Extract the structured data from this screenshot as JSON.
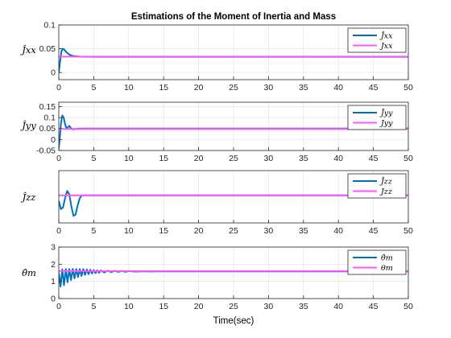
{
  "figure": {
    "title": "Estimations of the Moment of Inertia and Mass",
    "xlabel": "Time(sec)"
  },
  "colors": {
    "estimate": "#0072BD",
    "reference": "#FF55FF",
    "grid": "#DFDFDF",
    "axes": "#262626"
  },
  "chart_data": [
    {
      "type": "line",
      "ylabel": "Ĵxx",
      "xlim": [
        0,
        50
      ],
      "ylim": [
        -0.015,
        0.1
      ],
      "xticks": [
        0,
        5,
        10,
        15,
        20,
        25,
        30,
        35,
        40,
        45,
        50
      ],
      "yticks": [
        0,
        0.05,
        0.1
      ],
      "ytick_labels": [
        "0",
        "0.05",
        "0.1"
      ],
      "grid": true,
      "legend": "top-right",
      "series": [
        {
          "name": "Ĵxx",
          "role": "estimate",
          "x": [
            0,
            0.2,
            0.4,
            0.6,
            0.8,
            1.0,
            1.3,
            1.6,
            2.0,
            2.5,
            3.0,
            5,
            10,
            20,
            30,
            40,
            50
          ],
          "y": [
            0.0,
            0.025,
            0.046,
            0.05,
            0.048,
            0.044,
            0.04,
            0.037,
            0.035,
            0.034,
            0.0335,
            0.033,
            0.033,
            0.033,
            0.033,
            0.033,
            0.033
          ]
        },
        {
          "name": "Jxx",
          "role": "reference",
          "x": [
            0,
            50
          ],
          "y": [
            0.0335,
            0.0335
          ]
        }
      ]
    },
    {
      "type": "line",
      "ylabel": "Ĵyy",
      "xlim": [
        0,
        50
      ],
      "ylim": [
        -0.05,
        0.17
      ],
      "xticks": [
        0,
        5,
        10,
        15,
        20,
        25,
        30,
        35,
        40,
        45,
        50
      ],
      "yticks": [
        -0.05,
        0,
        0.05,
        0.1,
        0.15
      ],
      "ytick_labels": [
        "-0.05",
        "0",
        "0.05",
        "0.1",
        "0.15"
      ],
      "grid": true,
      "legend": "top-right",
      "series": [
        {
          "name": "Ĵyy",
          "role": "estimate",
          "x": [
            0,
            0.15,
            0.3,
            0.5,
            0.7,
            0.9,
            1.1,
            1.3,
            1.5,
            1.8,
            2.1,
            2.5,
            3.0,
            5,
            10,
            20,
            30,
            40,
            50
          ],
          "y": [
            -0.04,
            0.01,
            0.07,
            0.11,
            0.1,
            0.07,
            0.05,
            0.055,
            0.062,
            0.05,
            0.046,
            0.049,
            0.05,
            0.05,
            0.05,
            0.05,
            0.05,
            0.05,
            0.05
          ]
        },
        {
          "name": "Jyy",
          "role": "reference",
          "x": [
            0,
            50
          ],
          "y": [
            0.048,
            0.048
          ]
        }
      ]
    },
    {
      "type": "line",
      "ylabel": "Ĵzz",
      "xlim": [
        0,
        50
      ],
      "ylim": [
        -0.4,
        0.55
      ],
      "xticks": [
        0,
        5,
        10,
        15,
        20,
        25,
        30,
        35,
        40,
        45,
        50
      ],
      "yticks": [],
      "ytick_labels": [],
      "grid": true,
      "legend": "top-right",
      "series": [
        {
          "name": "Ĵzz",
          "role": "estimate",
          "x": [
            0,
            0.3,
            0.6,
            0.9,
            1.2,
            1.5,
            1.8,
            2.1,
            2.4,
            2.7,
            3.0,
            3.3,
            3.6,
            4.0,
            5,
            10,
            20,
            30,
            40,
            50
          ],
          "y": [
            0.0,
            -0.15,
            -0.12,
            0.05,
            0.18,
            0.12,
            -0.1,
            -0.27,
            -0.25,
            -0.08,
            0.05,
            0.1,
            0.1,
            0.1,
            0.1,
            0.1,
            0.1,
            0.1,
            0.1,
            0.1
          ]
        },
        {
          "name": "Jzz",
          "role": "reference",
          "x": [
            0,
            50
          ],
          "y": [
            0.1,
            0.1
          ]
        }
      ]
    },
    {
      "type": "line",
      "ylabel": "θ̂m",
      "xlim": [
        0,
        50
      ],
      "ylim": [
        0,
        3
      ],
      "xticks": [
        0,
        5,
        10,
        15,
        20,
        25,
        30,
        35,
        40,
        45,
        50
      ],
      "yticks": [
        0,
        1,
        2,
        3
      ],
      "ytick_labels": [
        "0",
        "1",
        "2",
        "3"
      ],
      "grid": true,
      "legend": "top-right",
      "series": [
        {
          "name": "θ̂m",
          "role": "estimate",
          "x": [
            0,
            0.25,
            0.5,
            0.75,
            1.0,
            1.25,
            1.5,
            1.75,
            2.0,
            2.25,
            2.5,
            2.75,
            3.0,
            3.25,
            3.5,
            3.75,
            4.0,
            4.25,
            4.5,
            4.75,
            5.0,
            5.25,
            5.5,
            5.75,
            6.0,
            6.5,
            7.0,
            7.5,
            8.0,
            8.5,
            9.0,
            9.5,
            10,
            11,
            12,
            13,
            14,
            16,
            20,
            30,
            40,
            50
          ],
          "y": [
            1.5,
            0.7,
            1.7,
            0.78,
            1.72,
            0.95,
            1.72,
            1.08,
            1.73,
            1.18,
            1.72,
            1.25,
            1.72,
            1.32,
            1.72,
            1.38,
            1.7,
            1.42,
            1.68,
            1.46,
            1.66,
            1.48,
            1.65,
            1.5,
            1.64,
            1.52,
            1.63,
            1.54,
            1.62,
            1.55,
            1.61,
            1.56,
            1.6,
            1.57,
            1.59,
            1.575,
            1.585,
            1.58,
            1.58,
            1.58,
            1.58,
            1.58
          ]
        },
        {
          "name": "θm",
          "role": "reference",
          "x": [
            0,
            50
          ],
          "y": [
            1.6,
            1.6
          ]
        }
      ]
    }
  ]
}
